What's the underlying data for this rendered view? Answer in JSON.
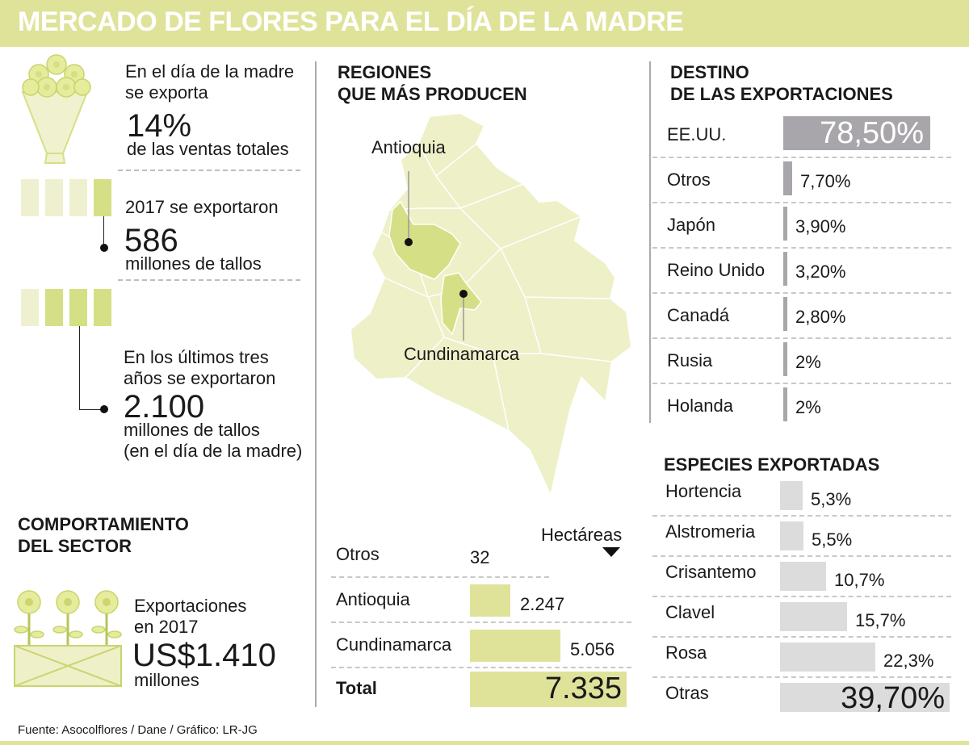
{
  "title": "MERCADO DE FLORES PARA EL DÍA DE LA MADRE",
  "left": {
    "stat1": {
      "line1": "En el día de la madre",
      "line2": "se exporta",
      "value": "14%",
      "caption": "de las ventas totales"
    },
    "stat2": {
      "label": "2017 se exportaron",
      "value": "586",
      "caption": "millones de tallos"
    },
    "stat3": {
      "line1": "En los últimos tres",
      "line2": "años se exportaron",
      "value": "2.100",
      "caption1": "millones de tallos",
      "caption2": "(en el día de la madre)"
    }
  },
  "sector": {
    "heading1": "COMPORTAMIENTO",
    "heading2": "DEL SECTOR",
    "line1": "Exportaciones",
    "line2": "en 2017",
    "value": "US$1.410",
    "caption": "millones"
  },
  "regions": {
    "heading1": "REGIONES",
    "heading2": "QUE MÁS PRODUCEN",
    "map_labels": {
      "antioquia": "Antioquia",
      "cundinamarca": "Cundinamarca"
    },
    "unit": "Hectáreas",
    "rows": [
      {
        "label": "Otros",
        "value": "32",
        "amount": 32
      },
      {
        "label": "Antioquia",
        "value": "2.247",
        "amount": 2247
      },
      {
        "label": "Cundinamarca",
        "value": "5.056",
        "amount": 5056
      }
    ],
    "total": {
      "label": "Total",
      "value": "7.335",
      "amount": 7335
    }
  },
  "destinations": {
    "heading1": "DESTINO",
    "heading2": "DE LAS EXPORTACIONES",
    "rows": [
      {
        "label": "EE.UU.",
        "value": "78,50%",
        "pct": 78.5
      },
      {
        "label": "Otros",
        "value": "7,70%",
        "pct": 7.7
      },
      {
        "label": "Japón",
        "value": "3,90%",
        "pct": 3.9
      },
      {
        "label": "Reino Unido",
        "value": "3,20%",
        "pct": 3.2
      },
      {
        "label": "Canadá",
        "value": "2,80%",
        "pct": 2.8
      },
      {
        "label": "Rusia",
        "value": "2%",
        "pct": 2
      },
      {
        "label": "Holanda",
        "value": "2%",
        "pct": 2
      }
    ]
  },
  "species": {
    "heading": "ESPECIES  EXPORTADAS",
    "rows": [
      {
        "label": "Hortencia",
        "value": "5,3%",
        "pct": 5.3
      },
      {
        "label": "Alstromeria",
        "value": "5,5%",
        "pct": 5.5
      },
      {
        "label": "Crisantemo",
        "value": "10,7%",
        "pct": 10.7
      },
      {
        "label": "Clavel",
        "value": "15,7%",
        "pct": 15.7
      },
      {
        "label": "Rosa",
        "value": "22,3%",
        "pct": 22.3
      },
      {
        "label": "Otras",
        "value": "39,70%",
        "pct": 39.7
      }
    ]
  },
  "footer": "Fuente: Asocolflores / Dane  / Gráfico: LR-JG",
  "colors": {
    "accent": "#dfe39a",
    "accent_dark": "#d5df86",
    "gray_bar": "#a8a6ab",
    "light_bar": "#dcdcdc",
    "map_fill": "#eef0c8"
  }
}
